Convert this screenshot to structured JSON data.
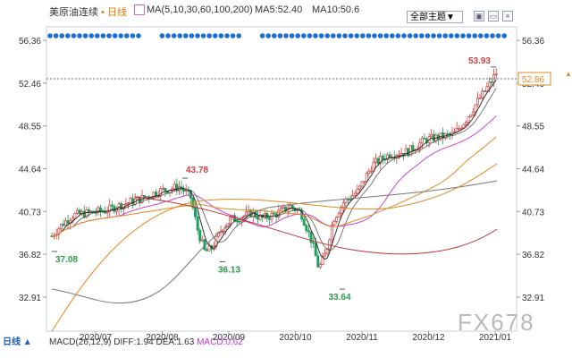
{
  "header": {
    "symbol": "美原油连续",
    "period_suffix": "日线",
    "ma_params": "MA(5,10,30,60,100,200)",
    "ma5": "MA5:52.40",
    "ma10": "MA10:50.6",
    "theme_label": "全部主题▼",
    "icons": [
      "expand-icon",
      "minimize-icon",
      "close-icon"
    ],
    "icon_glyphs": [
      "▣",
      "▭",
      "×"
    ]
  },
  "chart_data": {
    "type": "candlestick",
    "y_ticks": [
      "56.36",
      "52.46",
      "48.55",
      "44.64",
      "40.73",
      "36.82",
      "32.91"
    ],
    "x_ticks": [
      "2020/07",
      "2020/08",
      "2020/09",
      "2020/10",
      "2020/11",
      "2020/12",
      "2021/01"
    ],
    "ylim": [
      29.8,
      57.6
    ],
    "last_price": "52.86",
    "annotations": [
      {
        "label": "37.08",
        "value": 37.08,
        "kind": "low"
      },
      {
        "label": "43.78",
        "value": 43.78,
        "kind": "high"
      },
      {
        "label": "36.13",
        "value": 36.13,
        "kind": "low"
      },
      {
        "label": "33.64",
        "value": 33.64,
        "kind": "low"
      },
      {
        "label": "53.93",
        "value": 53.93,
        "kind": "high"
      }
    ],
    "colors": {
      "up": "#d23f3f",
      "down": "#1a9e5a",
      "axis_up": "#d23f3f",
      "axis_low": "#2d9a4a"
    }
  },
  "footer": {
    "period": "日线",
    "macd_params": "MACD(26,12,9)",
    "diff": "DIFF:1.94",
    "dea": "DEA:1.63",
    "macd": "MACD:0.62"
  },
  "watermark": "FX678"
}
